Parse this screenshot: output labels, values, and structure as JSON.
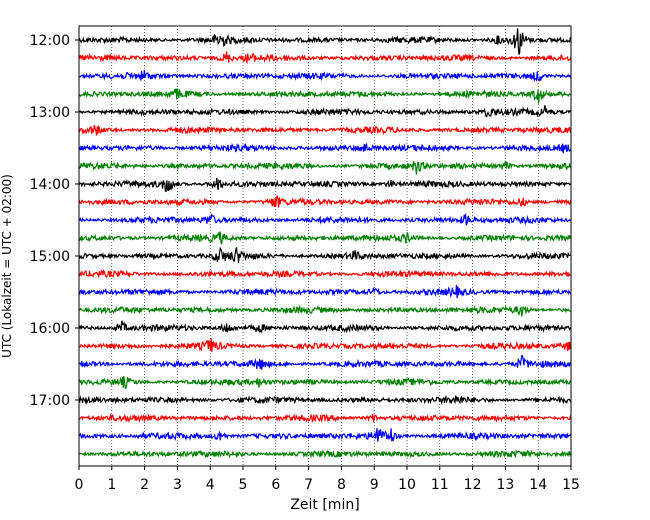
{
  "chart_data": {
    "type": "line",
    "title": "",
    "xlabel": "Zeit  [min]",
    "ylabel": "UTC (Lokalzeit = UTC + 02:00)",
    "xlim": [
      0,
      15
    ],
    "x_ticks": [
      "0",
      "1",
      "2",
      "3",
      "4",
      "5",
      "6",
      "7",
      "8",
      "9",
      "10",
      "11",
      "12",
      "13",
      "14",
      "15"
    ],
    "y_ticks": [
      "12:00",
      "13:00",
      "14:00",
      "15:00",
      "16:00",
      "17:00"
    ],
    "grid": "vertical dotted lines at each minute",
    "line_minutes": 15,
    "trace_colors": [
      "#000000",
      "#ff0000",
      "#0000ff",
      "#008000"
    ],
    "traces": [
      {
        "start": "12:00",
        "color": "#000000",
        "events": [
          [
            4.3,
            1.2
          ],
          [
            13.4,
            2.2
          ],
          [
            12.8,
            0.5
          ]
        ]
      },
      {
        "start": "12:15",
        "color": "#ff0000",
        "events": [
          [
            4.5,
            0.8
          ],
          [
            5.2,
            0.6
          ]
        ]
      },
      {
        "start": "12:30",
        "color": "#0000ff",
        "events": [
          [
            14.0,
            0.8
          ],
          [
            2.0,
            0.5
          ]
        ]
      },
      {
        "start": "12:45",
        "color": "#008000",
        "events": [
          [
            14.0,
            1.2
          ],
          [
            3.0,
            0.5
          ]
        ]
      },
      {
        "start": "13:00",
        "color": "#000000",
        "events": [
          [
            12.5,
            0.7
          ],
          [
            14.2,
            0.6
          ]
        ]
      },
      {
        "start": "13:15",
        "color": "#ff0000",
        "events": [
          [
            0.5,
            0.6
          ]
        ]
      },
      {
        "start": "13:30",
        "color": "#0000ff",
        "events": [
          [
            8.7,
            0.7
          ],
          [
            14.8,
            0.5
          ]
        ]
      },
      {
        "start": "13:45",
        "color": "#008000",
        "events": [
          [
            10.3,
            0.9
          ],
          [
            13.0,
            0.6
          ]
        ]
      },
      {
        "start": "14:00",
        "color": "#000000",
        "events": [
          [
            2.7,
            1.3
          ],
          [
            4.2,
            0.9
          ],
          [
            9.5,
            0.5
          ]
        ]
      },
      {
        "start": "14:15",
        "color": "#ff0000",
        "events": [
          [
            6.0,
            0.8
          ],
          [
            13.5,
            0.6
          ]
        ]
      },
      {
        "start": "14:30",
        "color": "#0000ff",
        "events": [
          [
            4.0,
            0.8
          ],
          [
            11.8,
            0.7
          ]
        ]
      },
      {
        "start": "14:45",
        "color": "#008000",
        "events": [
          [
            4.3,
            0.6
          ],
          [
            10.0,
            0.5
          ]
        ]
      },
      {
        "start": "15:00",
        "color": "#000000",
        "events": [
          [
            4.3,
            1.0
          ],
          [
            4.8,
            0.9
          ],
          [
            8.4,
            0.5
          ]
        ]
      },
      {
        "start": "15:15",
        "color": "#ff0000",
        "events": []
      },
      {
        "start": "15:30",
        "color": "#0000ff",
        "events": [
          [
            9.0,
            0.5
          ],
          [
            11.5,
            0.5
          ]
        ]
      },
      {
        "start": "15:45",
        "color": "#008000",
        "events": [
          [
            13.5,
            0.8
          ]
        ]
      },
      {
        "start": "16:00",
        "color": "#000000",
        "events": [
          [
            1.3,
            0.8
          ],
          [
            4.5,
            0.7
          ],
          [
            5.5,
            0.5
          ]
        ]
      },
      {
        "start": "16:15",
        "color": "#ff0000",
        "events": [
          [
            4.0,
            0.8
          ],
          [
            14.9,
            0.5
          ]
        ]
      },
      {
        "start": "16:30",
        "color": "#0000ff",
        "events": [
          [
            5.5,
            0.7
          ],
          [
            13.5,
            0.9
          ]
        ]
      },
      {
        "start": "16:45",
        "color": "#008000",
        "events": [
          [
            1.4,
            0.6
          ],
          [
            5.5,
            0.5
          ]
        ]
      },
      {
        "start": "17:00",
        "color": "#000000",
        "events": [
          [
            11.5,
            0.4
          ]
        ]
      },
      {
        "start": "17:15",
        "color": "#ff0000",
        "events": [
          [
            9.0,
            0.5
          ]
        ]
      },
      {
        "start": "17:30",
        "color": "#0000ff",
        "events": [
          [
            4.3,
            0.8
          ],
          [
            9.1,
            1.2
          ],
          [
            9.5,
            1.1
          ]
        ]
      },
      {
        "start": "17:45",
        "color": "#008000",
        "events": []
      }
    ]
  }
}
